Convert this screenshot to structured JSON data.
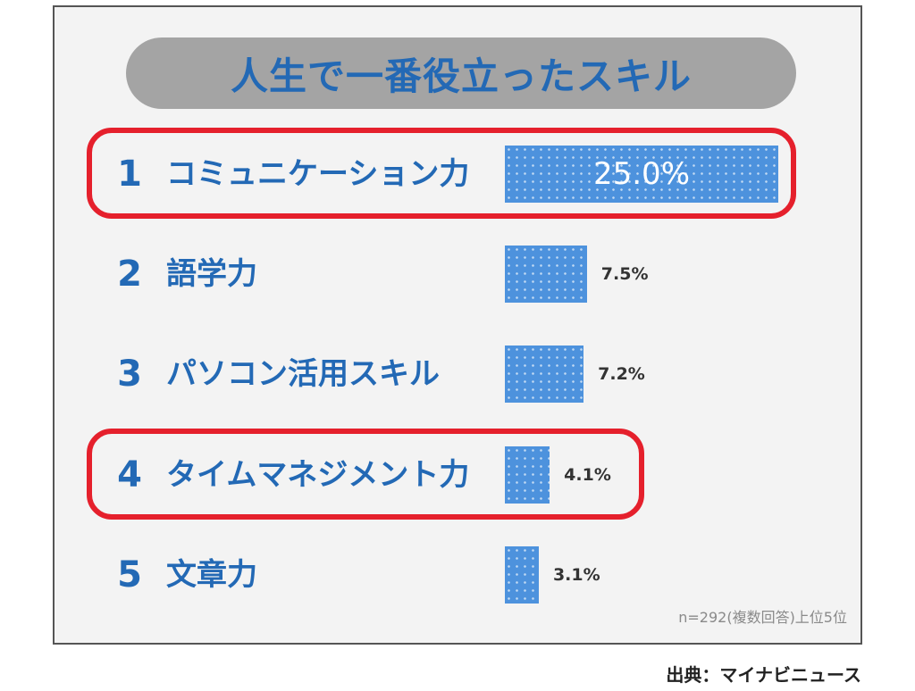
{
  "title": "人生で一番役立ったスキル",
  "note": "n=292(複数回答)上位5位",
  "source": "出典：マイナビニュース",
  "colors": {
    "bar": "#4d92dd",
    "title_text": "#2369b5",
    "highlight": "#e5202c",
    "title_bg": "#a4a4a4"
  },
  "chart_data": {
    "type": "bar",
    "orientation": "horizontal",
    "title": "人生で一番役立ったスキル",
    "categories": [
      "コミュニケーション力",
      "語学力",
      "パソコン活用スキル",
      "タイムマネジメント力",
      "文章力"
    ],
    "ranks": [
      "1",
      "2",
      "3",
      "4",
      "5"
    ],
    "values": [
      25.0,
      7.5,
      7.2,
      4.1,
      3.1
    ],
    "value_labels": [
      "25.0%",
      "7.5%",
      "7.2%",
      "4.1%",
      "3.1%"
    ],
    "unit": "%",
    "highlighted_ranks": [
      "1",
      "4"
    ],
    "xlabel": "",
    "ylabel": "",
    "grid": false
  }
}
